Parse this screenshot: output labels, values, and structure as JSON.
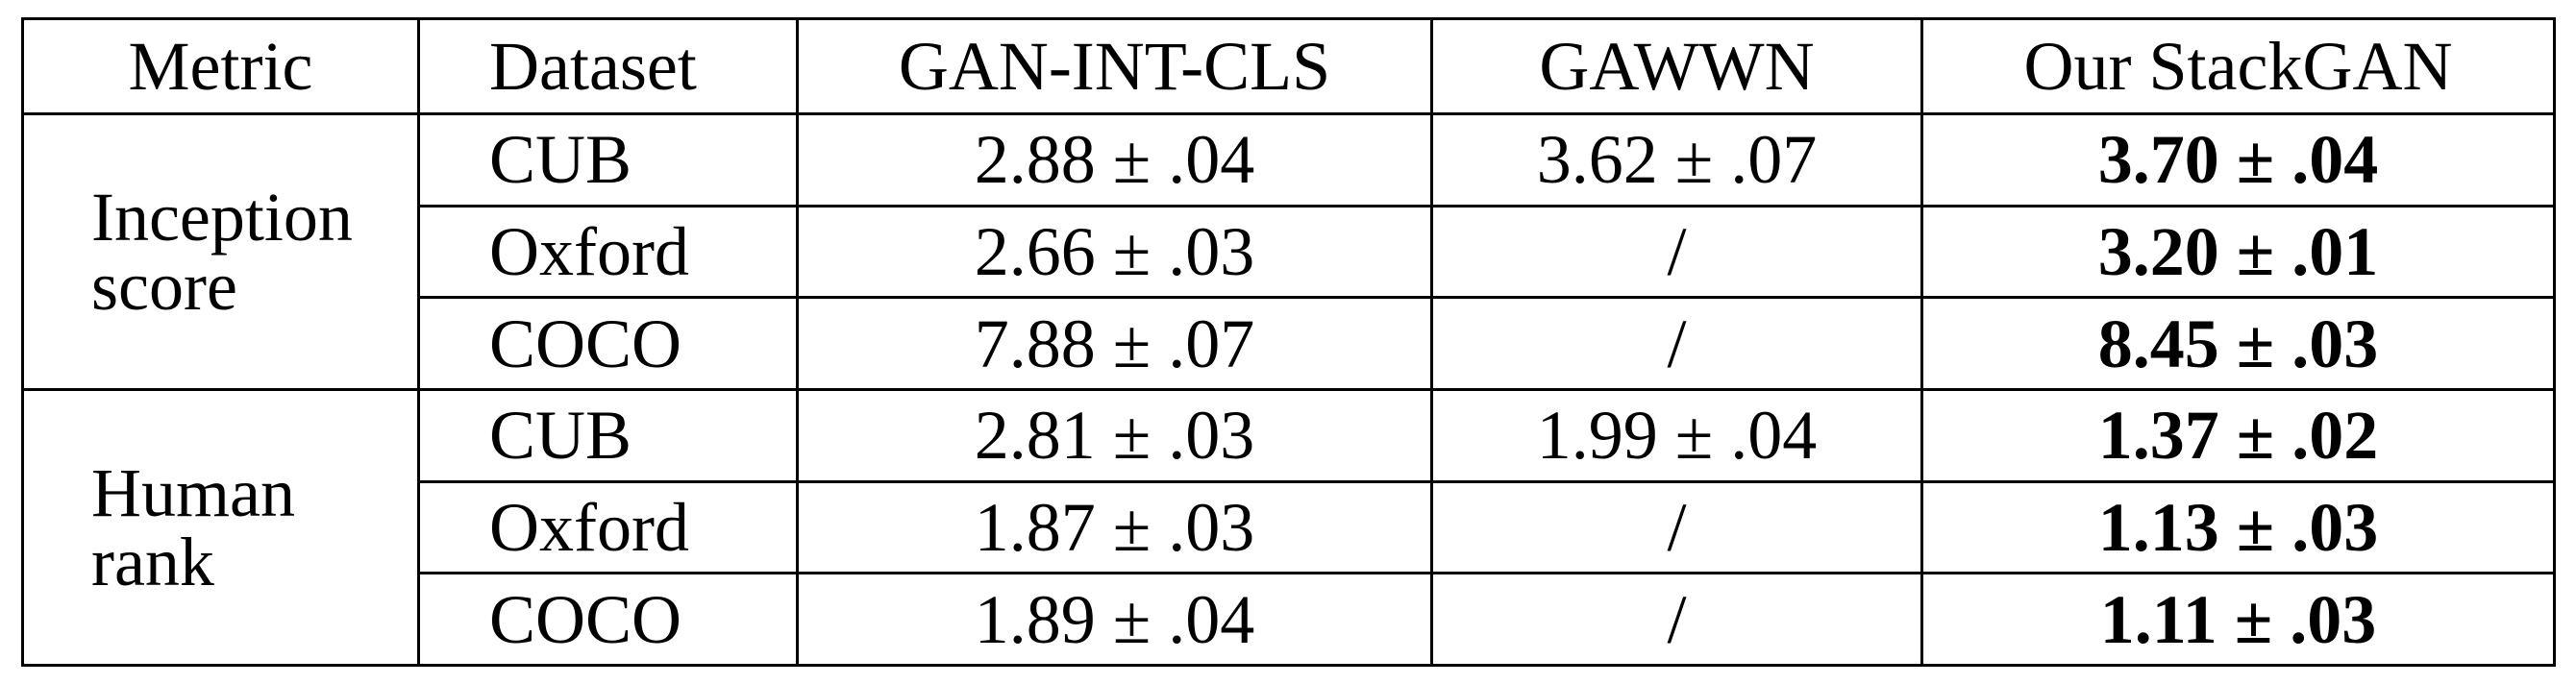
{
  "headers": {
    "metric": "Metric",
    "dataset": "Dataset",
    "gan_int_cls": "GAN-INT-CLS",
    "gawwn": "GAWWN",
    "stackgan": "Our StackGAN"
  },
  "groups": [
    {
      "metric_line1": "Inception",
      "metric_line2": "score",
      "rows": [
        {
          "dataset": "CUB",
          "gan_int_cls": "2.88 ± .04",
          "gawwn": "3.62 ± .07",
          "stackgan": "3.70 ± .04"
        },
        {
          "dataset": "Oxford",
          "gan_int_cls": "2.66 ± .03",
          "gawwn": "/",
          "stackgan": "3.20 ± .01"
        },
        {
          "dataset": "COCO",
          "gan_int_cls": "7.88 ± .07",
          "gawwn": "/",
          "stackgan": "8.45 ± .03"
        }
      ]
    },
    {
      "metric_line1": "Human",
      "metric_line2": "rank",
      "rows": [
        {
          "dataset": "CUB",
          "gan_int_cls": "2.81 ± .03",
          "gawwn": "1.99 ± .04",
          "stackgan": "1.37 ± .02"
        },
        {
          "dataset": "Oxford",
          "gan_int_cls": "1.87 ± .03",
          "gawwn": "/",
          "stackgan": "1.13 ± .03"
        },
        {
          "dataset": "COCO",
          "gan_int_cls": "1.89 ± .04",
          "gawwn": "/",
          "stackgan": "1.11 ± .03"
        }
      ]
    }
  ]
}
